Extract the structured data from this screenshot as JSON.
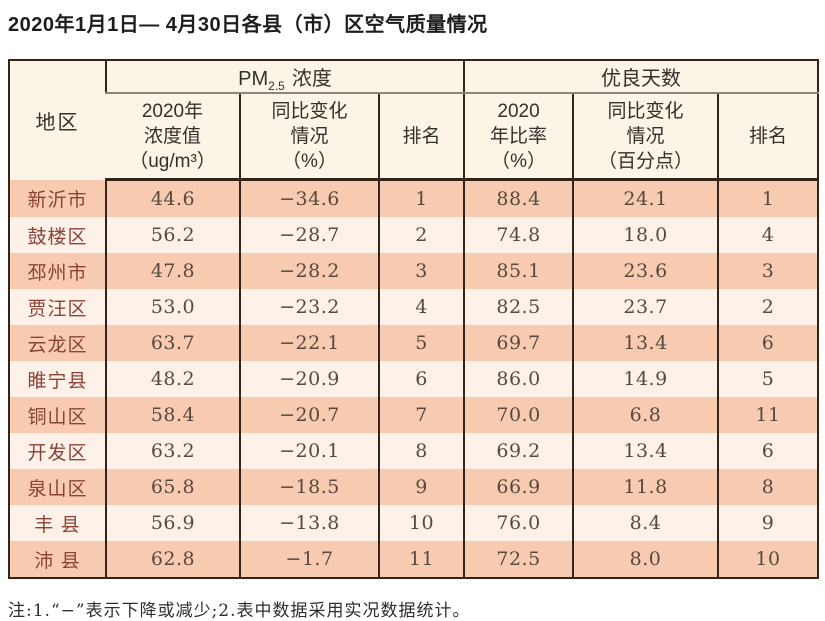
{
  "title": "2020年1月1日— 4月30日各县（市）区空气质量情况",
  "table": {
    "col_region": "地区",
    "group_pm25": {
      "pre": "PM",
      "sub": "2.5",
      "post": "浓度"
    },
    "group_good_days": "优良天数",
    "subheaders": [
      "2020年\n浓度值\n（ug/m³）",
      "同比变化\n情况\n（%）",
      "排名",
      "2020\n年比率\n（%）",
      "同比变化\n情况\n（百分点）",
      "排名"
    ],
    "rows": [
      {
        "region": "新沂市",
        "values": [
          "44.6",
          "−34.6",
          "1",
          "88.4",
          "24.1",
          "1"
        ]
      },
      {
        "region": "鼓楼区",
        "values": [
          "56.2",
          "−28.7",
          "2",
          "74.8",
          "18.0",
          "4"
        ]
      },
      {
        "region": "邳州市",
        "values": [
          "47.8",
          "−28.2",
          "3",
          "85.1",
          "23.6",
          "3"
        ]
      },
      {
        "region": "贾汪区",
        "values": [
          "53.0",
          "−23.2",
          "4",
          "82.5",
          "23.7",
          "2"
        ]
      },
      {
        "region": "云龙区",
        "values": [
          "63.7",
          "−22.1",
          "5",
          "69.7",
          "13.4",
          "6"
        ]
      },
      {
        "region": "睢宁县",
        "values": [
          "48.2",
          "−20.9",
          "6",
          "86.0",
          "14.9",
          "5"
        ]
      },
      {
        "region": "铜山区",
        "values": [
          "58.4",
          "−20.7",
          "7",
          "70.0",
          "6.8",
          "11"
        ]
      },
      {
        "region": "开发区",
        "values": [
          "63.2",
          "−20.1",
          "8",
          "69.2",
          "13.4",
          "6"
        ]
      },
      {
        "region": "泉山区",
        "values": [
          "65.8",
          "−18.5",
          "9",
          "66.9",
          "11.8",
          "8"
        ]
      },
      {
        "region": "丰 县",
        "values": [
          "56.9",
          "−13.8",
          "10",
          "76.0",
          "8.4",
          "9"
        ]
      },
      {
        "region": "沛 县",
        "values": [
          "62.8",
          "−1.7",
          "11",
          "72.5",
          "8.0",
          "10"
        ]
      }
    ]
  },
  "footnote": "注:1.“−”表示下降或减少;2.表中数据采用实况数据统计。",
  "colors": {
    "row_salmon": "#f8cbb0",
    "row_light": "#fdf1e9",
    "header_bg": "#fcf4e7",
    "border_dark": "#32231b",
    "region_text": "#8a4335",
    "value_text": "#57493f"
  }
}
